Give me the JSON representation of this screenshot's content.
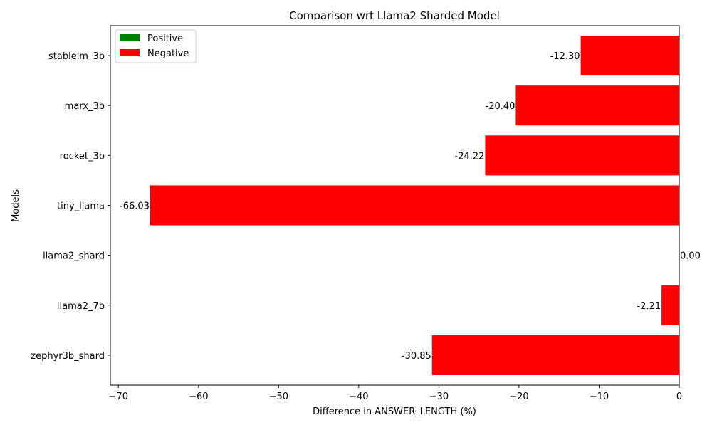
{
  "chart_data": {
    "type": "bar",
    "orientation": "horizontal",
    "title": "Comparison wrt Llama2 Sharded Model",
    "xlabel": "Difference in ANSWER_LENGTH (%)",
    "ylabel": "Models",
    "xlim": [
      -71,
      0
    ],
    "xticks": [
      -70,
      -60,
      -50,
      -40,
      -30,
      -20,
      -10,
      0
    ],
    "xtick_labels": [
      "−70",
      "−60",
      "−50",
      "−40",
      "−30",
      "−20",
      "−10",
      "0"
    ],
    "categories": [
      "zephyr3b_shard",
      "llama2_7b",
      "llama2_shard",
      "tiny_llama",
      "rocket_3b",
      "marx_3b",
      "stablelm_3b"
    ],
    "values": [
      -30.85,
      -2.21,
      0.0,
      -66.03,
      -24.22,
      -20.4,
      -12.3
    ],
    "value_labels": [
      "-30.85",
      "-2.21",
      "0.00",
      "-66.03",
      "-24.22",
      "-20.40",
      "-12.30"
    ],
    "colors": {
      "positive": "#008000",
      "negative": "#ff0000"
    },
    "legend": {
      "position": "upper-left",
      "entries": [
        {
          "label": "Positive",
          "color": "#008000"
        },
        {
          "label": "Negative",
          "color": "#ff0000"
        }
      ]
    },
    "grid": false
  }
}
